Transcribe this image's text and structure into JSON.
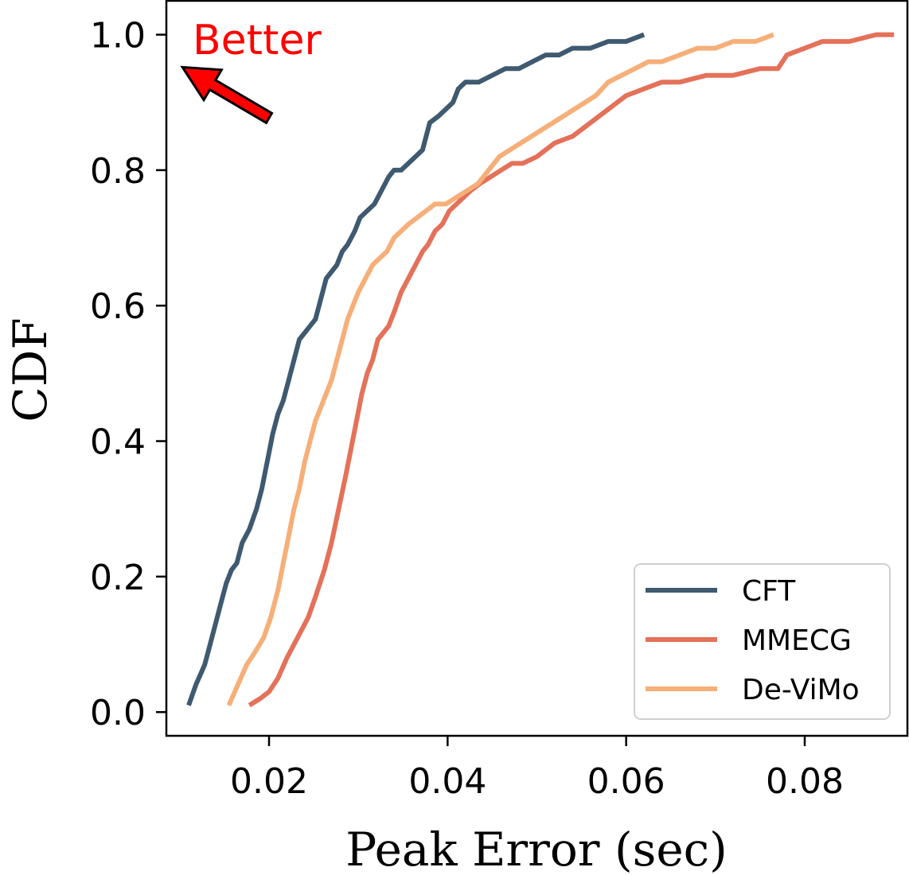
{
  "chart_data": {
    "type": "line",
    "title": "",
    "xlabel": "Peak Error (sec)",
    "ylabel": "CDF",
    "xlim": [
      0.0085,
      0.0915
    ],
    "ylim": [
      -0.035,
      1.05
    ],
    "xticks": [
      0.02,
      0.04,
      0.06,
      0.08
    ],
    "xtick_labels": [
      "0.02",
      "0.04",
      "0.06",
      "0.08"
    ],
    "yticks": [
      0.0,
      0.2,
      0.4,
      0.6,
      0.8,
      1.0
    ],
    "ytick_labels": [
      "0.0",
      "0.2",
      "0.4",
      "0.6",
      "0.8",
      "1.0"
    ],
    "grid": false,
    "legend_position": "bottom-right",
    "annotation": {
      "text": "Better",
      "color": "#ff0000",
      "arrow_from": [
        0.02,
        0.877
      ],
      "arrow_to": [
        0.0103,
        0.952
      ]
    },
    "series": [
      {
        "name": "CFT",
        "color": "#3f5a70",
        "x": [
          0.011,
          0.0118,
          0.0128,
          0.0134,
          0.014,
          0.0146,
          0.0152,
          0.0158,
          0.0164,
          0.017,
          0.0178,
          0.0186,
          0.0192,
          0.0198,
          0.0204,
          0.021,
          0.0216,
          0.0222,
          0.0228,
          0.0234,
          0.024,
          0.0246,
          0.0252,
          0.0258,
          0.0264,
          0.027,
          0.0276,
          0.0282,
          0.0288,
          0.0296,
          0.0302,
          0.031,
          0.0318,
          0.0326,
          0.0334,
          0.034,
          0.0348,
          0.0356,
          0.0364,
          0.0372,
          0.038,
          0.039,
          0.0398,
          0.0406,
          0.0412,
          0.042,
          0.0435,
          0.045,
          0.0465,
          0.048,
          0.0495,
          0.051,
          0.0525,
          0.054,
          0.056,
          0.058,
          0.06,
          0.062
        ],
        "y": [
          0.01,
          0.04,
          0.07,
          0.1,
          0.13,
          0.16,
          0.19,
          0.21,
          0.22,
          0.25,
          0.27,
          0.3,
          0.33,
          0.37,
          0.41,
          0.44,
          0.46,
          0.49,
          0.52,
          0.55,
          0.56,
          0.57,
          0.58,
          0.61,
          0.64,
          0.65,
          0.66,
          0.68,
          0.69,
          0.71,
          0.73,
          0.74,
          0.75,
          0.77,
          0.79,
          0.8,
          0.8,
          0.81,
          0.82,
          0.83,
          0.87,
          0.88,
          0.89,
          0.9,
          0.92,
          0.93,
          0.93,
          0.94,
          0.95,
          0.95,
          0.96,
          0.97,
          0.97,
          0.98,
          0.98,
          0.99,
          0.99,
          1.0
        ]
      },
      {
        "name": "MMECG",
        "color": "#e47159",
        "x": [
          0.0178,
          0.019,
          0.02,
          0.021,
          0.022,
          0.0232,
          0.0244,
          0.0252,
          0.0262,
          0.027,
          0.0278,
          0.0286,
          0.0292,
          0.0298,
          0.0304,
          0.031,
          0.0316,
          0.0322,
          0.0328,
          0.0334,
          0.034,
          0.0348,
          0.0356,
          0.0364,
          0.0372,
          0.0378,
          0.0386,
          0.0394,
          0.0402,
          0.041,
          0.0418,
          0.0426,
          0.0436,
          0.0448,
          0.046,
          0.0472,
          0.0484,
          0.05,
          0.052,
          0.054,
          0.056,
          0.058,
          0.06,
          0.062,
          0.064,
          0.066,
          0.069,
          0.072,
          0.075,
          0.077,
          0.078,
          0.08,
          0.082,
          0.085,
          0.088,
          0.09
        ],
        "y": [
          0.01,
          0.02,
          0.03,
          0.05,
          0.08,
          0.11,
          0.14,
          0.17,
          0.21,
          0.25,
          0.3,
          0.35,
          0.39,
          0.43,
          0.47,
          0.5,
          0.52,
          0.55,
          0.56,
          0.57,
          0.59,
          0.62,
          0.64,
          0.66,
          0.68,
          0.69,
          0.71,
          0.72,
          0.74,
          0.75,
          0.76,
          0.77,
          0.78,
          0.79,
          0.8,
          0.81,
          0.81,
          0.82,
          0.84,
          0.85,
          0.87,
          0.89,
          0.91,
          0.92,
          0.93,
          0.93,
          0.94,
          0.94,
          0.95,
          0.95,
          0.97,
          0.98,
          0.99,
          0.99,
          1.0,
          1.0
        ]
      },
      {
        "name": "De-ViMo",
        "color": "#f6af78",
        "x": [
          0.0155,
          0.0165,
          0.0175,
          0.0185,
          0.0194,
          0.0202,
          0.021,
          0.0216,
          0.0222,
          0.0228,
          0.0234,
          0.024,
          0.0246,
          0.0252,
          0.0258,
          0.0264,
          0.027,
          0.0276,
          0.0282,
          0.0288,
          0.0294,
          0.03,
          0.0308,
          0.0316,
          0.0324,
          0.0332,
          0.034,
          0.0348,
          0.0356,
          0.0366,
          0.0376,
          0.0386,
          0.0398,
          0.041,
          0.0422,
          0.0434,
          0.0446,
          0.0458,
          0.047,
          0.0482,
          0.0494,
          0.0506,
          0.0518,
          0.053,
          0.0542,
          0.0554,
          0.0566,
          0.058,
          0.0595,
          0.061,
          0.0625,
          0.064,
          0.066,
          0.068,
          0.07,
          0.072,
          0.0745,
          0.0765
        ],
        "y": [
          0.01,
          0.04,
          0.07,
          0.09,
          0.11,
          0.14,
          0.18,
          0.22,
          0.26,
          0.3,
          0.33,
          0.37,
          0.4,
          0.43,
          0.45,
          0.47,
          0.49,
          0.52,
          0.55,
          0.58,
          0.6,
          0.62,
          0.64,
          0.66,
          0.67,
          0.68,
          0.7,
          0.71,
          0.72,
          0.73,
          0.74,
          0.75,
          0.75,
          0.76,
          0.77,
          0.78,
          0.8,
          0.82,
          0.83,
          0.84,
          0.85,
          0.86,
          0.87,
          0.88,
          0.89,
          0.9,
          0.91,
          0.93,
          0.94,
          0.95,
          0.96,
          0.96,
          0.97,
          0.98,
          0.98,
          0.99,
          0.99,
          1.0
        ]
      }
    ]
  }
}
